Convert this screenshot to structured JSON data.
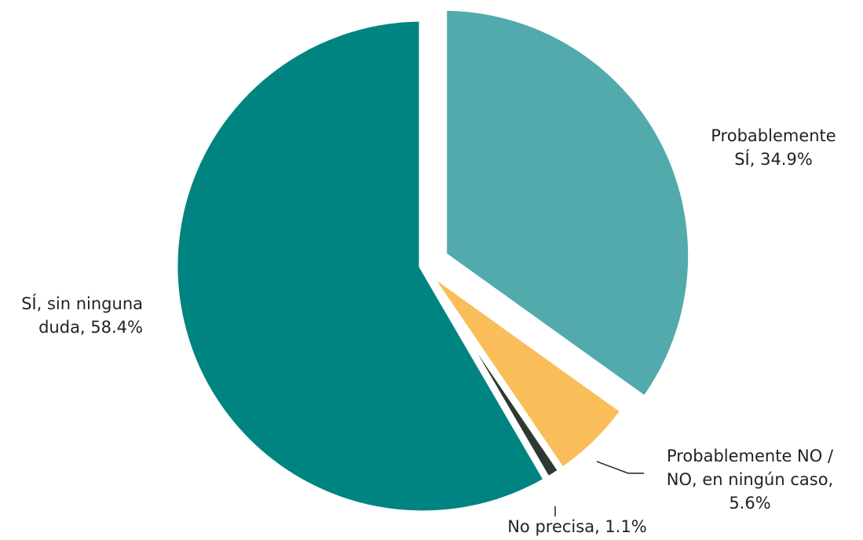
{
  "chart_data": {
    "type": "pie",
    "slices": [
      {
        "label_lines": [
          "Probablemente",
          "SÍ, 34.9%"
        ],
        "value": 34.9,
        "color": "#52aaad",
        "exploded": true
      },
      {
        "label_lines": [
          "Probablemente  NO /",
          "NO, en ningún  caso,",
          "5.6%"
        ],
        "value": 5.6,
        "color": "#f9be5a",
        "exploded": false
      },
      {
        "label_lines": [
          "No precisa, 1.1%"
        ],
        "value": 1.1,
        "color": "#2e3a31",
        "exploded": false
      },
      {
        "label_lines": [
          "SÍ, sin ninguna",
          "duda,  58.4%"
        ],
        "value": 58.4,
        "color": "#008481",
        "exploded": false
      }
    ],
    "start_angle_deg": 0,
    "direction": "clockwise"
  }
}
